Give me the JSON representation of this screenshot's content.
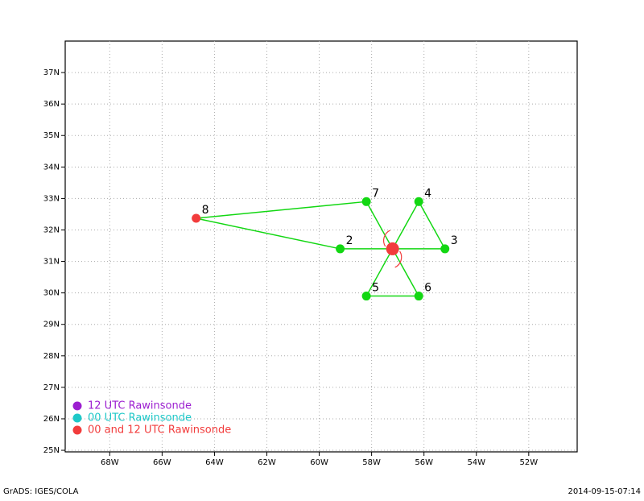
{
  "chart_data": {
    "type": "scatter",
    "xlim": [
      -69.7,
      -50.15
    ],
    "ylim": [
      24.95,
      38
    ],
    "xticks": [
      {
        "value": -68,
        "label": "68W"
      },
      {
        "value": -66,
        "label": "66W"
      },
      {
        "value": -64,
        "label": "64W"
      },
      {
        "value": -62,
        "label": "62W"
      },
      {
        "value": -60,
        "label": "60W"
      },
      {
        "value": -58,
        "label": "58W"
      },
      {
        "value": -56,
        "label": "56W"
      },
      {
        "value": -54,
        "label": "54W"
      },
      {
        "value": -52,
        "label": "52W"
      }
    ],
    "yticks": [
      {
        "value": 25,
        "label": "25N"
      },
      {
        "value": 26,
        "label": "26N"
      },
      {
        "value": 27,
        "label": "27N"
      },
      {
        "value": 28,
        "label": "28N"
      },
      {
        "value": 29,
        "label": "29N"
      },
      {
        "value": 30,
        "label": "30N"
      },
      {
        "value": 31,
        "label": "31N"
      },
      {
        "value": 32,
        "label": "32N"
      },
      {
        "value": 33,
        "label": "33N"
      },
      {
        "value": 34,
        "label": "34N"
      },
      {
        "value": 35,
        "label": "35N"
      },
      {
        "value": 36,
        "label": "36N"
      },
      {
        "value": 37,
        "label": "37N"
      }
    ],
    "grid": true,
    "series": [
      {
        "name": "12 UTC Rawinsonde",
        "color": "#9c1fd0",
        "x": [],
        "values": []
      },
      {
        "name": "00 UTC Rawinsonde",
        "color": "#1fc8c8",
        "x": [],
        "values": []
      },
      {
        "name": "00 and 12 UTC Rawinsonde",
        "color": "#f23c3c",
        "x": [
          -64.7
        ],
        "values": [
          32.37
        ],
        "labels": [
          "8"
        ]
      },
      {
        "color": "#12d712",
        "x": [
          -59.2,
          -55.2,
          -56.2,
          -58.2,
          -56.2,
          -58.2
        ],
        "values": [
          31.4,
          31.4,
          32.9,
          29.9,
          29.9,
          32.9
        ],
        "labels": [
          "2",
          "3",
          "4",
          "5",
          "6",
          "7"
        ]
      }
    ],
    "storm": {
      "x": -57.2,
      "y": 31.4,
      "color": "#f23c3c"
    }
  },
  "footer": {
    "left": "GrADS: IGES/COLA",
    "right": "2014-09-15-07:14"
  }
}
